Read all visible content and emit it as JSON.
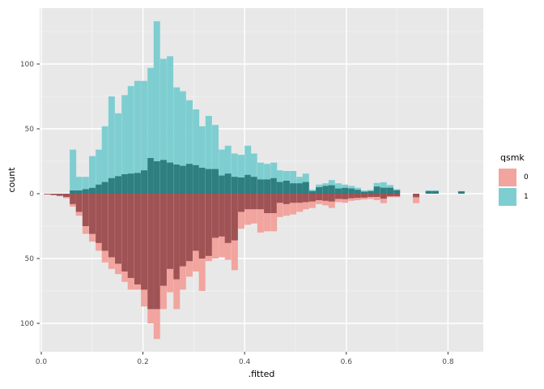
{
  "chart_data": {
    "type": "bar",
    "subtype": "mirrored-histogram",
    "title": "",
    "x_label": ".fitted",
    "y_label": "count",
    "x_ticks": [
      "0.0",
      "0.2",
      "0.4",
      "0.6",
      "0.8"
    ],
    "x_tick_values": [
      0.0,
      0.2,
      0.4,
      0.6,
      0.8
    ],
    "x_minor_values": [
      0.1,
      0.3,
      0.5,
      0.7
    ],
    "y_ticks": [
      "100",
      "50",
      "0",
      "50",
      "100"
    ],
    "y_tick_values": [
      100,
      50,
      0,
      -50,
      -100
    ],
    "y_minor_values": [
      125,
      75,
      25,
      -25,
      -75
    ],
    "xlim": [
      -0.003,
      0.869
    ],
    "ylim": [
      -122,
      143
    ],
    "grid": true,
    "legend": {
      "title": "qsmk",
      "position": "right",
      "entries": [
        {
          "label": "0",
          "color": "#F2A49F"
        },
        {
          "label": "1",
          "color": "#7ECED1"
        }
      ]
    },
    "series_note": "Upper (teal) bars = qsmk 1 counts above zero; lower (pink) bars = qsmk 0 counts mirrored below zero. Each bin has a light outer bar and a darker overlapped inner bar.",
    "bin_width": 0.0127,
    "columns": [
      "x_left",
      "upper_light",
      "upper_dark",
      "lower_light",
      "lower_dark"
    ],
    "bins": [
      [
        0.005,
        0,
        0,
        0.6,
        0.5
      ],
      [
        0.018,
        0,
        0,
        1.2,
        1
      ],
      [
        0.03,
        0,
        0,
        2,
        1.5
      ],
      [
        0.043,
        0,
        0,
        3.5,
        2.5
      ],
      [
        0.056,
        34,
        2.5,
        10,
        8
      ],
      [
        0.068,
        13,
        2.5,
        17,
        14
      ],
      [
        0.081,
        13,
        3.5,
        31,
        25
      ],
      [
        0.094,
        29,
        4.5,
        37,
        31
      ],
      [
        0.107,
        34,
        7,
        44,
        38
      ],
      [
        0.119,
        52,
        9,
        53,
        44
      ],
      [
        0.132,
        75,
        12,
        58,
        49
      ],
      [
        0.145,
        62,
        13.5,
        62,
        54
      ],
      [
        0.158,
        76,
        15,
        68,
        60
      ],
      [
        0.17,
        83,
        15.5,
        74,
        65
      ],
      [
        0.183,
        87,
        16,
        74,
        70
      ],
      [
        0.196,
        87,
        18,
        87,
        74
      ],
      [
        0.209,
        97,
        27.5,
        100,
        89
      ],
      [
        0.221,
        133,
        25,
        112,
        89
      ],
      [
        0.234,
        104,
        26,
        89,
        71
      ],
      [
        0.247,
        106,
        24,
        76,
        58
      ],
      [
        0.26,
        82,
        22.5,
        89,
        66
      ],
      [
        0.272,
        79,
        21.5,
        74,
        56
      ],
      [
        0.285,
        72,
        23,
        64,
        52
      ],
      [
        0.298,
        65,
        22,
        60,
        44
      ],
      [
        0.31,
        52,
        20,
        75,
        50
      ],
      [
        0.323,
        60,
        19,
        52,
        48
      ],
      [
        0.336,
        53,
        19,
        50,
        34
      ],
      [
        0.349,
        34,
        14,
        49,
        33
      ],
      [
        0.361,
        37,
        15.5,
        51,
        38
      ],
      [
        0.374,
        31,
        13,
        59,
        36
      ],
      [
        0.387,
        30,
        12.5,
        27,
        14
      ],
      [
        0.4,
        37,
        14.5,
        24,
        12
      ],
      [
        0.412,
        31,
        13,
        23,
        12
      ],
      [
        0.425,
        24,
        11,
        30,
        12
      ],
      [
        0.438,
        23,
        11,
        29,
        15
      ],
      [
        0.451,
        24,
        12,
        29,
        15
      ],
      [
        0.463,
        18,
        9,
        18,
        7
      ],
      [
        0.476,
        17.5,
        10,
        17,
        8
      ],
      [
        0.489,
        17.5,
        8,
        16,
        7
      ],
      [
        0.502,
        13,
        8,
        14,
        7
      ],
      [
        0.514,
        15.5,
        9,
        12,
        6.5
      ],
      [
        0.527,
        3,
        2,
        11,
        6
      ],
      [
        0.54,
        7,
        5,
        8,
        5
      ],
      [
        0.553,
        8,
        6,
        9,
        5.5
      ],
      [
        0.565,
        10.5,
        6.5,
        11,
        6
      ],
      [
        0.578,
        8,
        4,
        6.5,
        4
      ],
      [
        0.591,
        7,
        4.5,
        7,
        4.2
      ],
      [
        0.604,
        6,
        4,
        5.5,
        3.5
      ],
      [
        0.616,
        4.6,
        3,
        5,
        3.2
      ],
      [
        0.629,
        2.5,
        1.5,
        4.5,
        3
      ],
      [
        0.642,
        2.8,
        2,
        4,
        2.5
      ],
      [
        0.654,
        8.3,
        5.5,
        5,
        2.5
      ],
      [
        0.667,
        8.8,
        4.6,
        7.3,
        3.8
      ],
      [
        0.68,
        6.7,
        4.6,
        2.7,
        2
      ],
      [
        0.693,
        3.5,
        2.6,
        2.7,
        2
      ],
      [
        0.731,
        0,
        0,
        7.3,
        2.7
      ],
      [
        0.756,
        2.5,
        2,
        0,
        0
      ],
      [
        0.769,
        2.5,
        2,
        0,
        0
      ],
      [
        0.82,
        2,
        1.8,
        0,
        0
      ]
    ],
    "colors": {
      "panel_background": "#E8E8E8",
      "grid_major": "#FFFFFF",
      "grid_minor": "#FFFFFF",
      "upper_light": "#7ECED1",
      "upper_dark": "#2F7E80",
      "lower_light": "#F2A49F",
      "lower_dark": "#9F5355",
      "tick_text": "#4D4D4D",
      "tick_mark": "#333333"
    }
  }
}
